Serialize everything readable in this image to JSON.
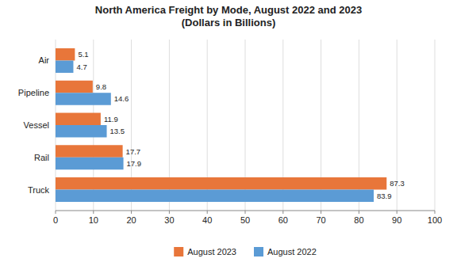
{
  "chart_data": {
    "type": "bar",
    "orientation": "horizontal",
    "title": "North America Freight by Mode, August 2022 and 2023\n(Dollars in Billions)",
    "categories": [
      "Truck",
      "Rail",
      "Vessel",
      "Pipeline",
      "Air"
    ],
    "series": [
      {
        "name": "August 2023",
        "color": "#E8763A",
        "values": [
          87.3,
          17.7,
          11.9,
          9.8,
          5.1
        ]
      },
      {
        "name": "August 2022",
        "color": "#5B9BD5",
        "values": [
          83.9,
          17.9,
          13.5,
          14.6,
          4.7
        ]
      }
    ],
    "xlim": [
      0,
      100
    ],
    "xticks": [
      0,
      10,
      20,
      30,
      40,
      50,
      60,
      70,
      80,
      90,
      100
    ],
    "grid": true,
    "legend": "bottom",
    "data_labels": true
  }
}
